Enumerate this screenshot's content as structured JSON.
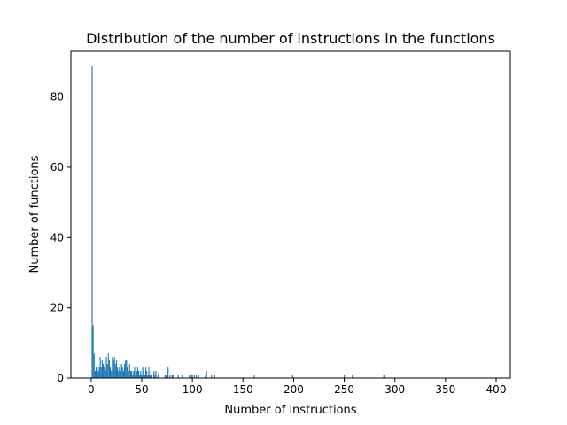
{
  "chart_data": {
    "type": "bar",
    "title": "Distribution of the number of instructions in the functions",
    "xlabel": "Number of instructions",
    "ylabel": "Number of functions",
    "xlim": [
      -20,
      414
    ],
    "ylim": [
      0,
      93
    ],
    "x_ticks": [
      0,
      50,
      100,
      150,
      200,
      250,
      300,
      350,
      400
    ],
    "y_ticks": [
      0,
      20,
      40,
      60,
      80
    ],
    "grid": false,
    "legend": "none",
    "color": "#1f77b4",
    "bar_width": 1,
    "points": [
      [
        1,
        89
      ],
      [
        2,
        15
      ],
      [
        3,
        7
      ],
      [
        4,
        2
      ],
      [
        5,
        3
      ],
      [
        6,
        3
      ],
      [
        7,
        2
      ],
      [
        8,
        3
      ],
      [
        9,
        6
      ],
      [
        10,
        3
      ],
      [
        11,
        5
      ],
      [
        12,
        4
      ],
      [
        13,
        3
      ],
      [
        14,
        2
      ],
      [
        15,
        6
      ],
      [
        16,
        4
      ],
      [
        17,
        7
      ],
      [
        18,
        5
      ],
      [
        19,
        3
      ],
      [
        20,
        2
      ],
      [
        21,
        6
      ],
      [
        22,
        5
      ],
      [
        23,
        6
      ],
      [
        24,
        4
      ],
      [
        25,
        5
      ],
      [
        26,
        3
      ],
      [
        27,
        2
      ],
      [
        28,
        3
      ],
      [
        29,
        2
      ],
      [
        30,
        4
      ],
      [
        31,
        3
      ],
      [
        32,
        2
      ],
      [
        33,
        4
      ],
      [
        34,
        5
      ],
      [
        35,
        5
      ],
      [
        36,
        3
      ],
      [
        37,
        2
      ],
      [
        38,
        4
      ],
      [
        39,
        2
      ],
      [
        40,
        2
      ],
      [
        41,
        1
      ],
      [
        42,
        2
      ],
      [
        43,
        3
      ],
      [
        44,
        1
      ],
      [
        45,
        2
      ],
      [
        46,
        3
      ],
      [
        47,
        2
      ],
      [
        48,
        1
      ],
      [
        49,
        2
      ],
      [
        50,
        1
      ],
      [
        51,
        3
      ],
      [
        52,
        2
      ],
      [
        53,
        1
      ],
      [
        54,
        3
      ],
      [
        55,
        2
      ],
      [
        56,
        1
      ],
      [
        57,
        3
      ],
      [
        58,
        1
      ],
      [
        59,
        2
      ],
      [
        60,
        1
      ],
      [
        62,
        2
      ],
      [
        63,
        1
      ],
      [
        64,
        2
      ],
      [
        66,
        1
      ],
      [
        67,
        2
      ],
      [
        73,
        1
      ],
      [
        74,
        1
      ],
      [
        75,
        2
      ],
      [
        76,
        3
      ],
      [
        78,
        1
      ],
      [
        80,
        1
      ],
      [
        81,
        1
      ],
      [
        86,
        1
      ],
      [
        90,
        1
      ],
      [
        97,
        1
      ],
      [
        99,
        1
      ],
      [
        100,
        1
      ],
      [
        102,
        1
      ],
      [
        104,
        1
      ],
      [
        106,
        1
      ],
      [
        113,
        1
      ],
      [
        114,
        2
      ],
      [
        119,
        1
      ],
      [
        122,
        1
      ],
      [
        161,
        1
      ],
      [
        199,
        1
      ],
      [
        250,
        1
      ],
      [
        258,
        1
      ],
      [
        289,
        1
      ],
      [
        290,
        1
      ]
    ]
  }
}
